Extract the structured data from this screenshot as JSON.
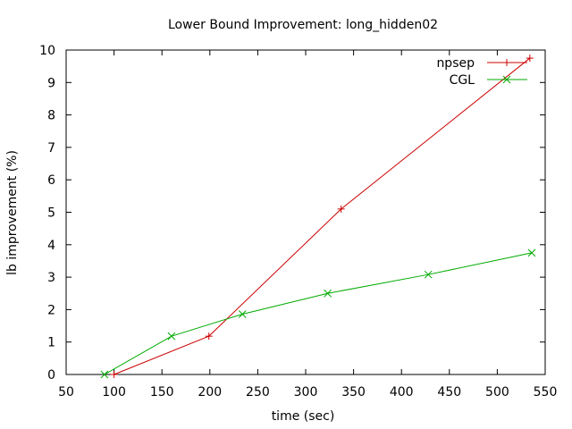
{
  "chart_data": {
    "type": "line",
    "title": "Lower Bound Improvement: long_hidden02",
    "xlabel": "time (sec)",
    "ylabel": "lb improvement (%)",
    "xlim": [
      50,
      550
    ],
    "ylim": [
      0,
      10
    ],
    "xticks": [
      50,
      100,
      150,
      200,
      250,
      300,
      350,
      400,
      450,
      500,
      550
    ],
    "yticks": [
      0,
      1,
      2,
      3,
      4,
      5,
      6,
      7,
      8,
      9,
      10
    ],
    "grid": false,
    "legend_position": "top-right",
    "series": [
      {
        "name": "npsep",
        "color": "#cc0000",
        "marker": "plus",
        "points": [
          [
            100,
            0.0
          ],
          [
            199,
            1.18
          ],
          [
            337,
            5.1
          ],
          [
            534,
            9.75
          ]
        ]
      },
      {
        "name": "CGL",
        "color": "#00aa00",
        "marker": "cross",
        "points": [
          [
            90,
            0.0
          ],
          [
            160,
            1.18
          ],
          [
            234,
            1.86
          ],
          [
            323,
            2.5
          ],
          [
            428,
            3.08
          ],
          [
            536,
            3.75
          ]
        ]
      }
    ]
  }
}
